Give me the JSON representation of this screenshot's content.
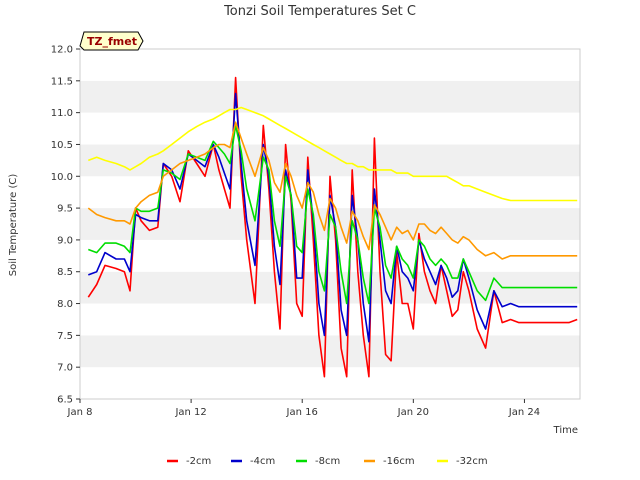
{
  "chart_data": {
    "type": "line",
    "title": "Tonzi Soil Temperatures Set C",
    "xlabel": "Time",
    "ylabel": "Soil Temperature (C)",
    "site_label": "TZ_fmet",
    "xlim": [
      0,
      18
    ],
    "ylim": [
      6.5,
      12.0
    ],
    "yticks": [
      6.5,
      7.0,
      7.5,
      8.0,
      8.5,
      9.0,
      9.5,
      10.0,
      10.5,
      11.0,
      11.5,
      12.0
    ],
    "ytick_labels": [
      "6.5",
      "7.0",
      "7.5",
      "8.0",
      "8.5",
      "9.0",
      "9.5",
      "10.0",
      "10.5",
      "11.0",
      "11.5",
      "12.0"
    ],
    "xticks": [
      0,
      4,
      8,
      12,
      16
    ],
    "xtick_labels": [
      "Jan 8",
      "Jan 12",
      "Jan 16",
      "Jan 20",
      "Jan 24"
    ],
    "x_unit": "days since Jan 8",
    "series": [
      {
        "name": "-2cm",
        "color": "#ff0000",
        "x": [
          0.3,
          0.6,
          0.9,
          1.3,
          1.6,
          1.8,
          2.0,
          2.2,
          2.5,
          2.8,
          3.0,
          3.3,
          3.6,
          3.9,
          4.2,
          4.5,
          4.8,
          5.0,
          5.2,
          5.4,
          5.6,
          5.8,
          6.0,
          6.3,
          6.6,
          6.8,
          7.0,
          7.2,
          7.4,
          7.6,
          7.8,
          8.0,
          8.2,
          8.4,
          8.6,
          8.8,
          9.0,
          9.2,
          9.4,
          9.6,
          9.8,
          10.0,
          10.2,
          10.4,
          10.6,
          10.8,
          11.0,
          11.2,
          11.4,
          11.6,
          11.8,
          12.0,
          12.2,
          12.4,
          12.6,
          12.8,
          13.0,
          13.2,
          13.4,
          13.6,
          13.8,
          14.0,
          14.3,
          14.6,
          14.9,
          15.2,
          15.5,
          15.8,
          16.1,
          16.4,
          16.7,
          16.9,
          17.1,
          17.3,
          17.6,
          17.9
        ],
        "values": [
          8.1,
          8.3,
          8.6,
          8.55,
          8.5,
          8.2,
          9.5,
          9.3,
          9.15,
          9.2,
          10.2,
          10.0,
          9.6,
          10.4,
          10.2,
          10.0,
          10.5,
          10.1,
          9.8,
          9.5,
          11.55,
          10.0,
          9.0,
          8.0,
          10.8,
          9.8,
          8.5,
          7.6,
          10.5,
          9.6,
          8.0,
          7.8,
          10.3,
          9.0,
          7.5,
          6.85,
          10.0,
          9.0,
          7.3,
          6.85,
          10.1,
          8.5,
          7.5,
          6.85,
          10.6,
          8.5,
          7.2,
          7.1,
          8.8,
          8.0,
          8.0,
          7.6,
          9.1,
          8.5,
          8.2,
          8.0,
          8.6,
          8.2,
          7.8,
          7.9,
          8.5,
          8.2,
          7.6,
          7.3,
          8.2,
          7.7,
          7.75,
          7.7,
          7.7,
          7.7,
          7.7,
          7.7,
          7.7,
          7.7,
          7.7,
          7.75
        ]
      },
      {
        "name": "-4cm",
        "color": "#0000cc",
        "x": [
          0.3,
          0.6,
          0.9,
          1.3,
          1.6,
          1.8,
          2.0,
          2.2,
          2.5,
          2.8,
          3.0,
          3.3,
          3.6,
          3.9,
          4.2,
          4.5,
          4.8,
          5.0,
          5.2,
          5.4,
          5.6,
          5.8,
          6.0,
          6.3,
          6.6,
          6.8,
          7.0,
          7.2,
          7.4,
          7.6,
          7.8,
          8.0,
          8.2,
          8.4,
          8.6,
          8.8,
          9.0,
          9.2,
          9.4,
          9.6,
          9.8,
          10.0,
          10.2,
          10.4,
          10.6,
          10.8,
          11.0,
          11.2,
          11.4,
          11.6,
          11.8,
          12.0,
          12.2,
          12.4,
          12.6,
          12.8,
          13.0,
          13.2,
          13.4,
          13.6,
          13.8,
          14.0,
          14.3,
          14.6,
          14.9,
          15.2,
          15.5,
          15.8,
          16.1,
          16.4,
          16.7,
          16.9,
          17.1,
          17.3,
          17.6,
          17.9
        ],
        "values": [
          8.45,
          8.5,
          8.8,
          8.7,
          8.7,
          8.5,
          9.4,
          9.35,
          9.3,
          9.3,
          10.2,
          10.1,
          9.8,
          10.35,
          10.25,
          10.15,
          10.5,
          10.3,
          10.05,
          9.8,
          11.3,
          10.2,
          9.3,
          8.6,
          10.5,
          10.0,
          8.9,
          8.3,
          10.1,
          9.7,
          8.4,
          8.4,
          10.1,
          9.3,
          8.0,
          7.5,
          9.7,
          9.2,
          7.9,
          7.5,
          9.7,
          9.0,
          8.0,
          7.4,
          9.8,
          9.0,
          8.2,
          8.0,
          8.9,
          8.5,
          8.4,
          8.2,
          9.0,
          8.7,
          8.5,
          8.3,
          8.6,
          8.4,
          8.1,
          8.2,
          8.7,
          8.4,
          7.9,
          7.6,
          8.2,
          7.95,
          8.0,
          7.95,
          7.95,
          7.95,
          7.95,
          7.95,
          7.95,
          7.95,
          7.95,
          7.95
        ]
      },
      {
        "name": "-8cm",
        "color": "#00dd00",
        "x": [
          0.3,
          0.6,
          0.9,
          1.3,
          1.6,
          1.8,
          2.0,
          2.2,
          2.5,
          2.8,
          3.0,
          3.3,
          3.6,
          3.9,
          4.2,
          4.5,
          4.8,
          5.0,
          5.2,
          5.4,
          5.6,
          5.8,
          6.0,
          6.3,
          6.6,
          6.8,
          7.0,
          7.2,
          7.4,
          7.6,
          7.8,
          8.0,
          8.2,
          8.4,
          8.6,
          8.8,
          9.0,
          9.2,
          9.4,
          9.6,
          9.8,
          10.0,
          10.2,
          10.4,
          10.6,
          10.8,
          11.0,
          11.2,
          11.4,
          11.6,
          11.8,
          12.0,
          12.2,
          12.4,
          12.6,
          12.8,
          13.0,
          13.2,
          13.4,
          13.6,
          13.8,
          14.0,
          14.3,
          14.6,
          14.9,
          15.2,
          15.5,
          15.8,
          16.1,
          16.4,
          16.7,
          16.9,
          17.1,
          17.3,
          17.6,
          17.9
        ],
        "values": [
          8.85,
          8.8,
          8.95,
          8.95,
          8.9,
          8.8,
          9.5,
          9.45,
          9.45,
          9.5,
          10.1,
          10.05,
          9.95,
          10.35,
          10.3,
          10.25,
          10.55,
          10.45,
          10.35,
          10.2,
          10.8,
          10.4,
          9.8,
          9.3,
          10.3,
          10.1,
          9.3,
          8.9,
          10.0,
          9.7,
          8.9,
          8.8,
          9.8,
          9.4,
          8.5,
          8.2,
          9.4,
          9.2,
          8.5,
          8.0,
          9.3,
          9.0,
          8.4,
          8.0,
          9.5,
          9.2,
          8.6,
          8.4,
          8.9,
          8.7,
          8.6,
          8.4,
          9.0,
          8.9,
          8.7,
          8.6,
          8.7,
          8.6,
          8.4,
          8.4,
          8.7,
          8.5,
          8.2,
          8.05,
          8.4,
          8.25,
          8.25,
          8.25,
          8.25,
          8.25,
          8.25,
          8.25,
          8.25,
          8.25,
          8.25,
          8.25
        ]
      },
      {
        "name": "-16cm",
        "color": "#ff9900",
        "x": [
          0.3,
          0.6,
          0.9,
          1.3,
          1.6,
          1.8,
          2.0,
          2.2,
          2.5,
          2.8,
          3.0,
          3.3,
          3.6,
          3.9,
          4.2,
          4.5,
          4.8,
          5.0,
          5.2,
          5.4,
          5.6,
          5.8,
          6.0,
          6.3,
          6.6,
          6.8,
          7.0,
          7.2,
          7.4,
          7.6,
          7.8,
          8.0,
          8.2,
          8.4,
          8.6,
          8.8,
          9.0,
          9.2,
          9.4,
          9.6,
          9.8,
          10.0,
          10.2,
          10.4,
          10.6,
          10.8,
          11.0,
          11.2,
          11.4,
          11.6,
          11.8,
          12.0,
          12.2,
          12.4,
          12.6,
          12.8,
          13.0,
          13.2,
          13.4,
          13.6,
          13.8,
          14.0,
          14.3,
          14.6,
          14.9,
          15.2,
          15.5,
          15.8,
          16.1,
          16.4,
          16.7,
          16.9,
          17.1,
          17.3,
          17.6,
          17.9
        ],
        "values": [
          9.5,
          9.4,
          9.35,
          9.3,
          9.3,
          9.25,
          9.5,
          9.6,
          9.7,
          9.75,
          10.0,
          10.1,
          10.2,
          10.25,
          10.3,
          10.35,
          10.45,
          10.5,
          10.5,
          10.45,
          10.85,
          10.6,
          10.35,
          10.0,
          10.45,
          10.25,
          9.9,
          9.75,
          10.2,
          10.0,
          9.7,
          9.5,
          9.9,
          9.75,
          9.4,
          9.15,
          9.65,
          9.5,
          9.2,
          8.95,
          9.45,
          9.3,
          9.05,
          8.85,
          9.55,
          9.4,
          9.2,
          9.0,
          9.2,
          9.1,
          9.15,
          9.0,
          9.25,
          9.25,
          9.15,
          9.1,
          9.2,
          9.1,
          9.0,
          8.95,
          9.05,
          9.0,
          8.85,
          8.75,
          8.8,
          8.7,
          8.75,
          8.75,
          8.75,
          8.75,
          8.75,
          8.75,
          8.75,
          8.75,
          8.75,
          8.75
        ]
      },
      {
        "name": "-32cm",
        "color": "#ffff00",
        "x": [
          0.3,
          0.6,
          0.9,
          1.3,
          1.6,
          1.8,
          2.0,
          2.2,
          2.5,
          2.8,
          3.0,
          3.3,
          3.6,
          3.9,
          4.2,
          4.5,
          4.8,
          5.0,
          5.2,
          5.4,
          5.6,
          5.8,
          6.0,
          6.3,
          6.6,
          6.8,
          7.0,
          7.2,
          7.4,
          7.6,
          7.8,
          8.0,
          8.2,
          8.4,
          8.6,
          8.8,
          9.0,
          9.2,
          9.4,
          9.6,
          9.8,
          10.0,
          10.2,
          10.4,
          10.6,
          10.8,
          11.0,
          11.2,
          11.4,
          11.6,
          11.8,
          12.0,
          12.2,
          12.4,
          12.6,
          12.8,
          13.0,
          13.2,
          13.4,
          13.6,
          13.8,
          14.0,
          14.3,
          14.6,
          14.9,
          15.2,
          15.5,
          15.8,
          16.1,
          16.4,
          16.7,
          16.9,
          17.1,
          17.3,
          17.6,
          17.9
        ],
        "values": [
          10.25,
          10.3,
          10.25,
          10.2,
          10.15,
          10.1,
          10.15,
          10.2,
          10.3,
          10.35,
          10.4,
          10.5,
          10.6,
          10.7,
          10.78,
          10.85,
          10.9,
          10.95,
          11.0,
          11.05,
          11.05,
          11.08,
          11.05,
          11.0,
          10.95,
          10.9,
          10.85,
          10.8,
          10.75,
          10.7,
          10.65,
          10.6,
          10.55,
          10.5,
          10.45,
          10.4,
          10.35,
          10.3,
          10.25,
          10.2,
          10.2,
          10.15,
          10.15,
          10.1,
          10.1,
          10.1,
          10.1,
          10.1,
          10.05,
          10.05,
          10.05,
          10.0,
          10.0,
          10.0,
          10.0,
          10.0,
          10.0,
          10.0,
          9.95,
          9.9,
          9.85,
          9.85,
          9.8,
          9.75,
          9.7,
          9.65,
          9.62,
          9.62,
          9.62,
          9.62,
          9.62,
          9.62,
          9.62,
          9.62,
          9.62,
          9.62
        ]
      }
    ]
  }
}
